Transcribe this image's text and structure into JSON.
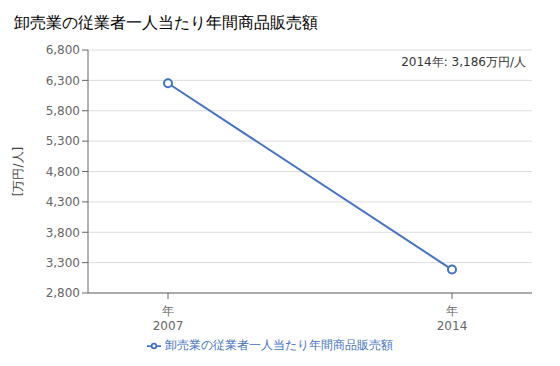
{
  "chart_data": {
    "type": "line",
    "title": "卸売業の従業者一人当たり年間商品販売額",
    "ylabel": "[万円/人]",
    "annotation": "2014年: 3,186万円/人",
    "categories": [
      "年\n2007",
      "年\n2014"
    ],
    "series": [
      {
        "name": "卸売業の従業者一人当たり年間商品販売額",
        "color": "#4472C4",
        "marker": "circle",
        "values": [
          6253,
          3186
        ]
      }
    ],
    "ylim": [
      2800,
      6800
    ],
    "yticks": [
      {
        "value": 2800,
        "label": "2,800"
      },
      {
        "value": 3300,
        "label": "3,300"
      },
      {
        "value": 3800,
        "label": "3,800"
      },
      {
        "value": 4300,
        "label": "4,300"
      },
      {
        "value": 4800,
        "label": "4,800"
      },
      {
        "value": 5300,
        "label": "5,300"
      },
      {
        "value": 5800,
        "label": "5,800"
      },
      {
        "value": 6300,
        "label": "6,300"
      },
      {
        "value": 6800,
        "label": "6,800"
      }
    ],
    "grid": true,
    "legend": "bottom"
  }
}
